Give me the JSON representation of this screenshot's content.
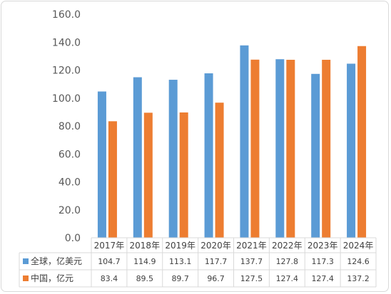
{
  "chart_data": {
    "type": "bar",
    "categories": [
      "2017年",
      "2018年",
      "2019年",
      "2020年",
      "2021年",
      "2022年",
      "2023年",
      "2024年"
    ],
    "series": [
      {
        "name": "全球，亿美元",
        "color": "#5b9bd5",
        "values": [
          104.7,
          114.9,
          113.1,
          117.7,
          137.7,
          127.8,
          117.3,
          124.6
        ]
      },
      {
        "name": "中国，亿元",
        "color": "#ed7d31",
        "values": [
          83.4,
          89.5,
          89.7,
          96.7,
          127.5,
          127.4,
          127.4,
          137.2
        ]
      }
    ],
    "ylim": [
      0,
      160
    ],
    "yticks": [
      "0.0",
      "20.0",
      "40.0",
      "60.0",
      "80.0",
      "100.0",
      "120.0",
      "140.0",
      "160.0"
    ],
    "table_values": [
      [
        "104.7",
        "114.9",
        "113.1",
        "117.7",
        "137.7",
        "127.8",
        "117.3",
        "124.6"
      ],
      [
        "83.4",
        "89.5",
        "89.7",
        "96.7",
        "127.5",
        "127.4",
        "127.4",
        "137.2"
      ]
    ],
    "grid": false,
    "legend": "data-table"
  }
}
